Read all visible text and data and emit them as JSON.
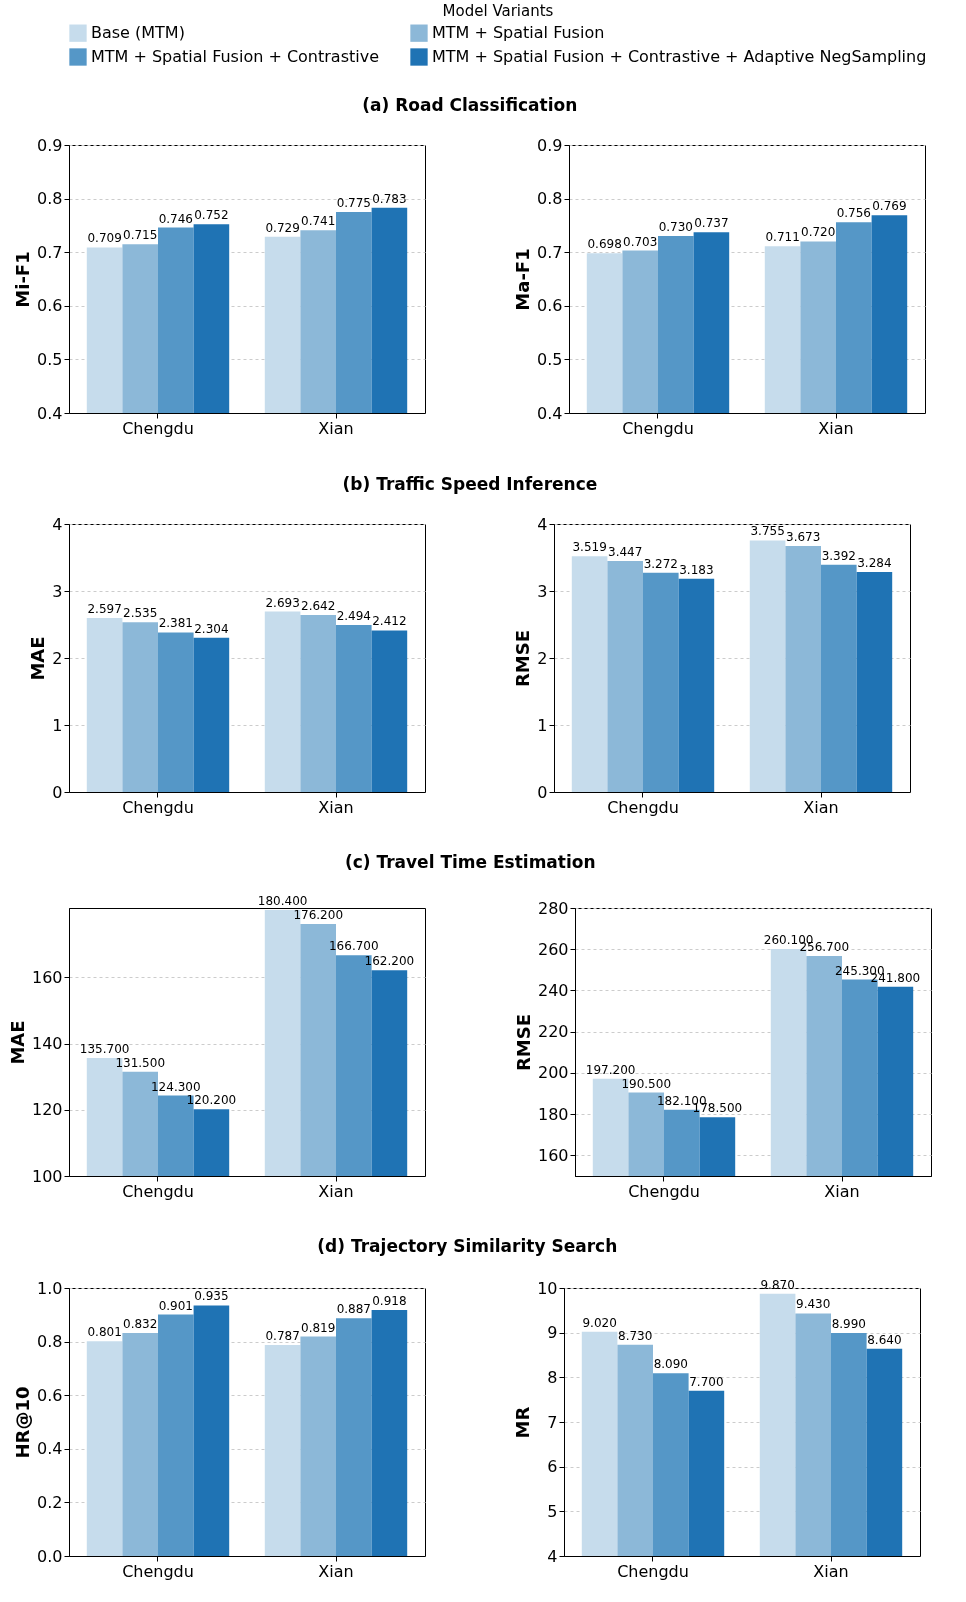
{
  "chart_data": [
    {
      "type": "bar",
      "title": "(a) Road Classification",
      "ylabel": "Mi-F1",
      "legend_title": "Model Variants",
      "legend": "top",
      "grid": "y",
      "categories": [
        "Chengdu",
        "Xian"
      ],
      "ylim": [
        0.4,
        0.9
      ],
      "yticks": [
        0.4,
        0.5,
        0.6,
        0.7,
        0.8,
        0.9
      ],
      "series": [
        {
          "name": "Base (MTM)",
          "color": "#c6dcec",
          "values": [
            0.709,
            0.729
          ],
          "value_labels": [
            "0.709",
            "0.729"
          ]
        },
        {
          "name": "MTM + Spatial Fusion",
          "color": "#8cb8d8",
          "values": [
            0.715,
            0.741
          ],
          "value_labels": [
            "0.715",
            "0.741"
          ]
        },
        {
          "name": "MTM + Spatial Fusion + Contrastive",
          "color": "#5597c7",
          "values": [
            0.746,
            0.775
          ],
          "value_labels": [
            "0.746",
            "0.775"
          ]
        },
        {
          "name": "MTM + Spatial Fusion + Contrastive + Adaptive NegSampling",
          "color": "#1f73b4",
          "values": [
            0.752,
            0.783
          ],
          "value_labels": [
            "0.752",
            "0.783"
          ]
        }
      ]
    },
    {
      "type": "bar",
      "ylabel": "Ma-F1",
      "grid": "y",
      "categories": [
        "Chengdu",
        "Xian"
      ],
      "ylim": [
        0.4,
        0.9
      ],
      "yticks": [
        0.4,
        0.5,
        0.6,
        0.7,
        0.8,
        0.9
      ],
      "series": [
        {
          "name": "Base (MTM)",
          "color": "#c6dcec",
          "values": [
            0.698,
            0.711
          ],
          "value_labels": [
            "0.698",
            "0.711"
          ]
        },
        {
          "name": "MTM + Spatial Fusion",
          "color": "#8cb8d8",
          "values": [
            0.703,
            0.72
          ],
          "value_labels": [
            "0.703",
            "0.720"
          ]
        },
        {
          "name": "MTM + Spatial Fusion + Contrastive",
          "color": "#5597c7",
          "values": [
            0.73,
            0.756
          ],
          "value_labels": [
            "0.730",
            "0.756"
          ]
        },
        {
          "name": "MTM + Spatial Fusion + Contrastive + Adaptive NegSampling",
          "color": "#1f73b4",
          "values": [
            0.737,
            0.769
          ],
          "value_labels": [
            "0.737",
            "0.769"
          ]
        }
      ]
    },
    {
      "type": "bar",
      "title": "(b) Traffic Speed Inference",
      "ylabel": "MAE",
      "grid": "y",
      "categories": [
        "Chengdu",
        "Xian"
      ],
      "ylim": [
        0,
        4
      ],
      "yticks": [
        0,
        1,
        2,
        3,
        4
      ],
      "series": [
        {
          "name": "Base (MTM)",
          "color": "#c6dcec",
          "values": [
            2.597,
            2.693
          ],
          "value_labels": [
            "2.597",
            "2.693"
          ]
        },
        {
          "name": "MTM + Spatial Fusion",
          "color": "#8cb8d8",
          "values": [
            2.535,
            2.642
          ],
          "value_labels": [
            "2.535",
            "2.642"
          ]
        },
        {
          "name": "MTM + Spatial Fusion + Contrastive",
          "color": "#5597c7",
          "values": [
            2.381,
            2.494
          ],
          "value_labels": [
            "2.381",
            "2.494"
          ]
        },
        {
          "name": "MTM + Spatial Fusion + Contrastive + Adaptive NegSampling",
          "color": "#1f73b4",
          "values": [
            2.304,
            2.412
          ],
          "value_labels": [
            "2.304",
            "2.412"
          ]
        }
      ]
    },
    {
      "type": "bar",
      "ylabel": "RMSE",
      "grid": "y",
      "categories": [
        "Chengdu",
        "Xian"
      ],
      "ylim": [
        0,
        4
      ],
      "yticks": [
        0,
        1,
        2,
        3,
        4
      ],
      "series": [
        {
          "name": "Base (MTM)",
          "color": "#c6dcec",
          "values": [
            3.519,
            3.755
          ],
          "value_labels": [
            "3.519",
            "3.755"
          ]
        },
        {
          "name": "MTM + Spatial Fusion",
          "color": "#8cb8d8",
          "values": [
            3.447,
            3.673
          ],
          "value_labels": [
            "3.447",
            "3.673"
          ]
        },
        {
          "name": "MTM + Spatial Fusion + Contrastive",
          "color": "#5597c7",
          "values": [
            3.272,
            3.392
          ],
          "value_labels": [
            "3.272",
            "3.392"
          ]
        },
        {
          "name": "MTM + Spatial Fusion + Contrastive + Adaptive NegSampling",
          "color": "#1f73b4",
          "values": [
            3.183,
            3.284
          ],
          "value_labels": [
            "3.183",
            "3.284"
          ]
        }
      ]
    },
    {
      "type": "bar",
      "title": "(c) Travel Time Estimation",
      "ylabel": "MAE",
      "grid": "y",
      "categories": [
        "Chengdu",
        "Xian"
      ],
      "ylim": [
        100,
        181
      ],
      "yticks": [
        100,
        120,
        140,
        160
      ],
      "series": [
        {
          "name": "Base (MTM)",
          "color": "#c6dcec",
          "values": [
            135.7,
            180.4
          ],
          "value_labels": [
            "135.700",
            "180.400"
          ]
        },
        {
          "name": "MTM + Spatial Fusion",
          "color": "#8cb8d8",
          "values": [
            131.5,
            176.2
          ],
          "value_labels": [
            "131.500",
            "176.200"
          ]
        },
        {
          "name": "MTM + Spatial Fusion + Contrastive",
          "color": "#5597c7",
          "values": [
            124.3,
            166.7
          ],
          "value_labels": [
            "124.300",
            "166.700"
          ]
        },
        {
          "name": "MTM + Spatial Fusion + Contrastive + Adaptive NegSampling",
          "color": "#1f73b4",
          "values": [
            120.2,
            162.2
          ],
          "value_labels": [
            "120.200",
            "162.200"
          ]
        }
      ]
    },
    {
      "type": "bar",
      "ylabel": "RMSE",
      "grid": "y",
      "categories": [
        "Chengdu",
        "Xian"
      ],
      "ylim": [
        150,
        280
      ],
      "yticks": [
        160,
        180,
        200,
        220,
        240,
        260,
        280
      ],
      "series": [
        {
          "name": "Base (MTM)",
          "color": "#c6dcec",
          "values": [
            197.2,
            260.1
          ],
          "value_labels": [
            "197.200",
            "260.100"
          ]
        },
        {
          "name": "MTM + Spatial Fusion",
          "color": "#8cb8d8",
          "values": [
            190.5,
            256.7
          ],
          "value_labels": [
            "190.500",
            "256.700"
          ]
        },
        {
          "name": "MTM + Spatial Fusion + Contrastive",
          "color": "#5597c7",
          "values": [
            182.1,
            245.3
          ],
          "value_labels": [
            "182.100",
            "245.300"
          ]
        },
        {
          "name": "MTM + Spatial Fusion + Contrastive + Adaptive NegSampling",
          "color": "#1f73b4",
          "values": [
            178.5,
            241.8
          ],
          "value_labels": [
            "178.500",
            "241.800"
          ]
        }
      ]
    },
    {
      "type": "bar",
      "title": "(d) Trajectory Similarity Search",
      "ylabel": "HR@10",
      "grid": "y",
      "categories": [
        "Chengdu",
        "Xian"
      ],
      "ylim": [
        0,
        1
      ],
      "yticks": [
        {
          "value": 0,
          "label": "0.0"
        },
        0.2,
        0.4,
        0.6,
        0.8,
        {
          "value": 1,
          "label": "1.0"
        }
      ],
      "series": [
        {
          "name": "Base (MTM)",
          "color": "#c6dcec",
          "values": [
            0.801,
            0.787
          ],
          "value_labels": [
            "0.801",
            "0.787"
          ]
        },
        {
          "name": "MTM + Spatial Fusion",
          "color": "#8cb8d8",
          "values": [
            0.832,
            0.819
          ],
          "value_labels": [
            "0.832",
            "0.819"
          ]
        },
        {
          "name": "MTM + Spatial Fusion + Contrastive",
          "color": "#5597c7",
          "values": [
            0.901,
            0.887
          ],
          "value_labels": [
            "0.901",
            "0.887"
          ]
        },
        {
          "name": "MTM + Spatial Fusion + Contrastive + Adaptive NegSampling",
          "color": "#1f73b4",
          "values": [
            0.935,
            0.918
          ],
          "value_labels": [
            "0.935",
            "0.918"
          ]
        }
      ]
    },
    {
      "type": "bar",
      "ylabel": "MR",
      "grid": "y",
      "categories": [
        "Chengdu",
        "Xian"
      ],
      "ylim": [
        4,
        10
      ],
      "yticks": [
        4,
        5,
        6,
        7,
        8,
        9,
        10
      ],
      "series": [
        {
          "name": "Base (MTM)",
          "color": "#c6dcec",
          "values": [
            9.02,
            9.87
          ],
          "value_labels": [
            "9.020",
            "9.870"
          ]
        },
        {
          "name": "MTM + Spatial Fusion",
          "color": "#8cb8d8",
          "values": [
            8.73,
            9.43
          ],
          "value_labels": [
            "8.730",
            "9.430"
          ]
        },
        {
          "name": "MTM + Spatial Fusion + Contrastive",
          "color": "#5597c7",
          "values": [
            8.09,
            8.99
          ],
          "value_labels": [
            "8.090",
            "8.990"
          ]
        },
        {
          "name": "MTM + Spatial Fusion + Contrastive + Adaptive NegSampling",
          "color": "#1f73b4",
          "values": [
            7.7,
            8.64
          ],
          "value_labels": [
            "7.700",
            "8.640"
          ]
        }
      ]
    }
  ]
}
